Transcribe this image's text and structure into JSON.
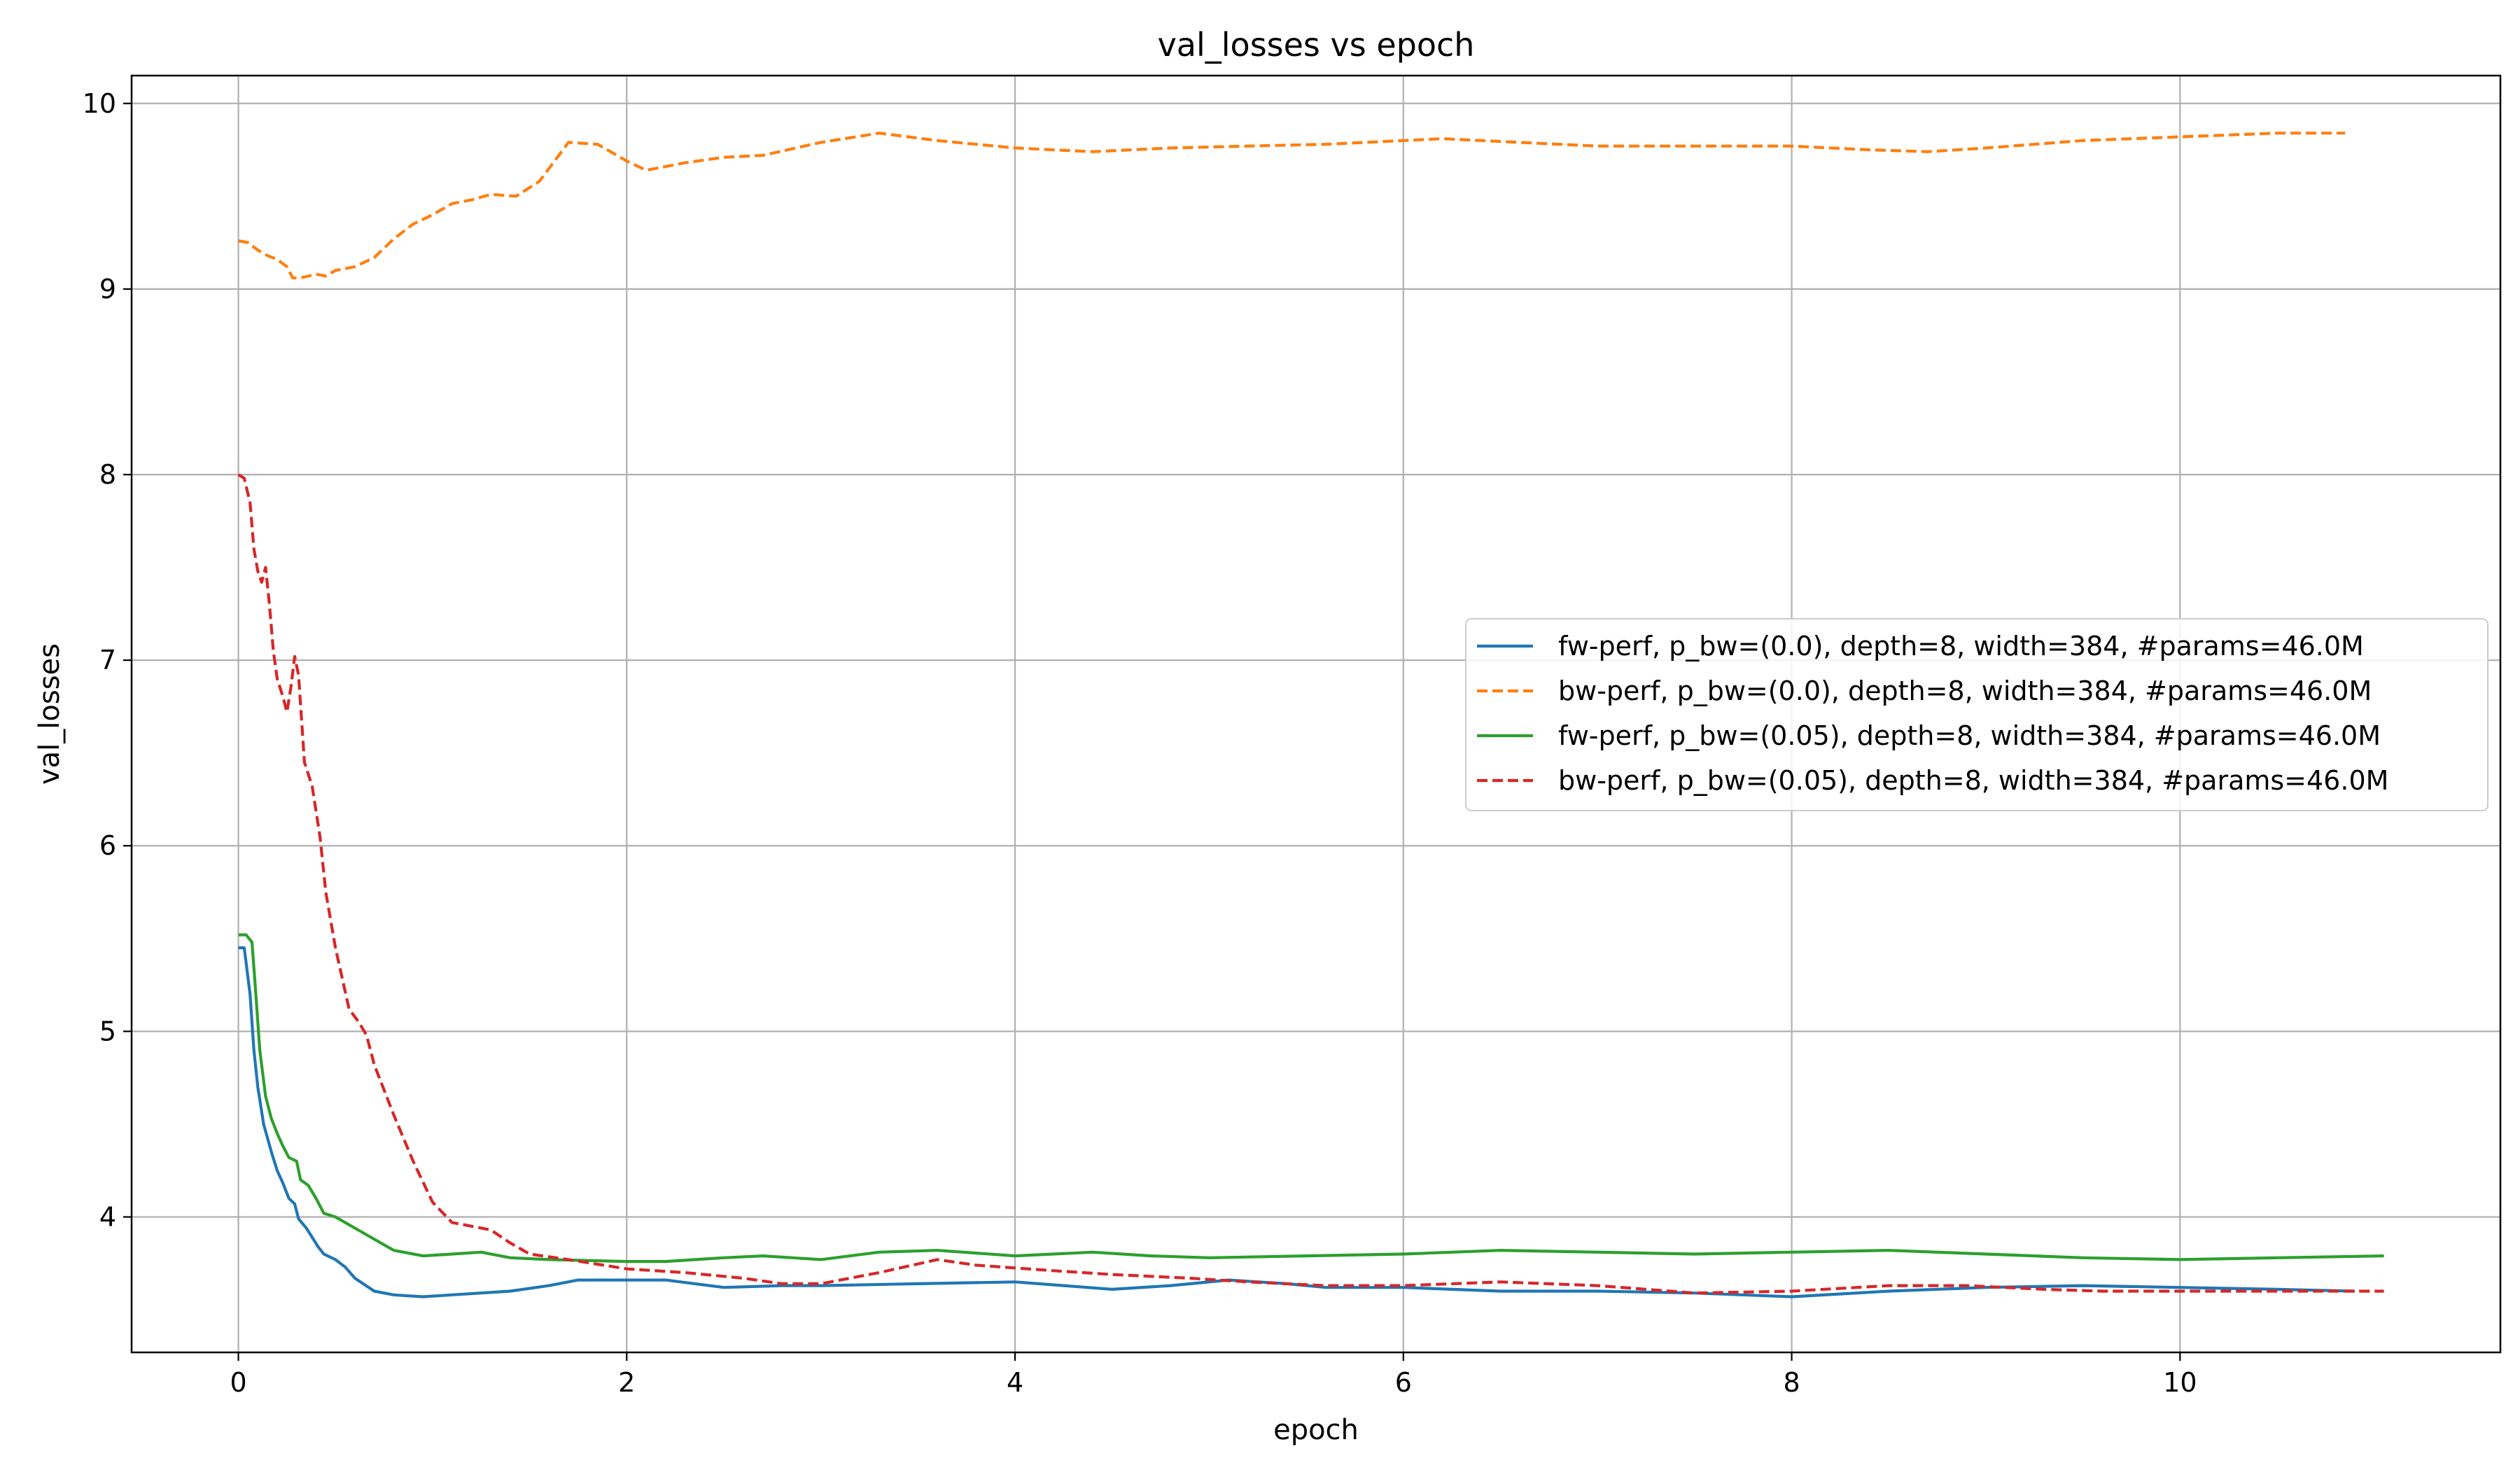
{
  "chart_data": {
    "type": "line",
    "title": "val_losses vs epoch",
    "xlabel": "epoch",
    "ylabel": "val_losses",
    "xlim": [
      -0.55,
      11.65
    ],
    "ylim": [
      3.27,
      10.15
    ],
    "x_ticks": [
      0,
      2,
      4,
      6,
      8,
      10
    ],
    "x_tick_labels": [
      "0",
      "2",
      "4",
      "6",
      "8",
      "10"
    ],
    "y_ticks": [
      4,
      5,
      6,
      7,
      8,
      9,
      10
    ],
    "y_tick_labels": [
      "4",
      "5",
      "6",
      "7",
      "8",
      "9",
      "10"
    ],
    "grid": true,
    "legend_position": "center-right",
    "series": [
      {
        "name": "fw-perf, p_bw=(0.0), depth=8, width=384, #params=46.0M",
        "color": "#1f77b4",
        "style": "solid",
        "points": [
          [
            0,
            5.45
          ],
          [
            0.03,
            5.45
          ],
          [
            0.06,
            5.2
          ],
          [
            0.08,
            4.9
          ],
          [
            0.1,
            4.7
          ],
          [
            0.13,
            4.5
          ],
          [
            0.17,
            4.35
          ],
          [
            0.2,
            4.25
          ],
          [
            0.23,
            4.18
          ],
          [
            0.26,
            4.1
          ],
          [
            0.29,
            4.07
          ],
          [
            0.31,
            3.99
          ],
          [
            0.35,
            3.94
          ],
          [
            0.38,
            3.89
          ],
          [
            0.41,
            3.84
          ],
          [
            0.44,
            3.8
          ],
          [
            0.5,
            3.77
          ],
          [
            0.55,
            3.73
          ],
          [
            0.6,
            3.67
          ],
          [
            0.7,
            3.6
          ],
          [
            0.8,
            3.58
          ],
          [
            0.95,
            3.57
          ],
          [
            1.1,
            3.58
          ],
          [
            1.4,
            3.6
          ],
          [
            1.6,
            3.63
          ],
          [
            1.75,
            3.66
          ],
          [
            2.0,
            3.66
          ],
          [
            2.2,
            3.66
          ],
          [
            2.5,
            3.62
          ],
          [
            2.8,
            3.63
          ],
          [
            3.0,
            3.63
          ],
          [
            3.5,
            3.64
          ],
          [
            4.0,
            3.65
          ],
          [
            4.5,
            3.61
          ],
          [
            4.8,
            3.63
          ],
          [
            5.1,
            3.66
          ],
          [
            5.4,
            3.64
          ],
          [
            5.6,
            3.62
          ],
          [
            6.0,
            3.62
          ],
          [
            6.5,
            3.6
          ],
          [
            7.0,
            3.6
          ],
          [
            7.5,
            3.59
          ],
          [
            8.0,
            3.57
          ],
          [
            8.5,
            3.6
          ],
          [
            9.0,
            3.62
          ],
          [
            9.5,
            3.63
          ],
          [
            10.0,
            3.62
          ],
          [
            10.5,
            3.61
          ],
          [
            10.9,
            3.6
          ]
        ]
      },
      {
        "name": "bw-perf, p_bw=(0.0), depth=8, width=384, #params=46.0M",
        "color": "#ff7f0e",
        "style": "dashed",
        "points": [
          [
            0,
            9.26
          ],
          [
            0.05,
            9.25
          ],
          [
            0.1,
            9.21
          ],
          [
            0.15,
            9.18
          ],
          [
            0.2,
            9.16
          ],
          [
            0.25,
            9.12
          ],
          [
            0.28,
            9.06
          ],
          [
            0.32,
            9.06
          ],
          [
            0.4,
            9.08
          ],
          [
            0.45,
            9.07
          ],
          [
            0.5,
            9.1
          ],
          [
            0.6,
            9.12
          ],
          [
            0.7,
            9.17
          ],
          [
            0.8,
            9.27
          ],
          [
            0.9,
            9.35
          ],
          [
            1.0,
            9.4
          ],
          [
            1.1,
            9.46
          ],
          [
            1.2,
            9.48
          ],
          [
            1.3,
            9.51
          ],
          [
            1.43,
            9.5
          ],
          [
            1.55,
            9.58
          ],
          [
            1.7,
            9.79
          ],
          [
            1.85,
            9.78
          ],
          [
            2.0,
            9.69
          ],
          [
            2.1,
            9.64
          ],
          [
            2.3,
            9.68
          ],
          [
            2.5,
            9.71
          ],
          [
            2.7,
            9.72
          ],
          [
            3.0,
            9.79
          ],
          [
            3.3,
            9.84
          ],
          [
            3.6,
            9.8
          ],
          [
            4.0,
            9.76
          ],
          [
            4.4,
            9.74
          ],
          [
            4.8,
            9.76
          ],
          [
            5.2,
            9.77
          ],
          [
            5.6,
            9.78
          ],
          [
            6.0,
            9.8
          ],
          [
            6.2,
            9.81
          ],
          [
            6.6,
            9.79
          ],
          [
            7.0,
            9.77
          ],
          [
            7.5,
            9.77
          ],
          [
            8.0,
            9.77
          ],
          [
            8.4,
            9.75
          ],
          [
            8.7,
            9.74
          ],
          [
            9.0,
            9.76
          ],
          [
            9.5,
            9.8
          ],
          [
            10.0,
            9.82
          ],
          [
            10.5,
            9.84
          ],
          [
            10.85,
            9.84
          ]
        ]
      },
      {
        "name": "fw-perf, p_bw=(0.05), depth=8, width=384, #params=46.0M",
        "color": "#2ca02c",
        "style": "solid",
        "points": [
          [
            0,
            5.52
          ],
          [
            0.04,
            5.52
          ],
          [
            0.07,
            5.48
          ],
          [
            0.09,
            5.2
          ],
          [
            0.11,
            4.9
          ],
          [
            0.14,
            4.65
          ],
          [
            0.17,
            4.53
          ],
          [
            0.2,
            4.45
          ],
          [
            0.23,
            4.38
          ],
          [
            0.26,
            4.32
          ],
          [
            0.3,
            4.3
          ],
          [
            0.32,
            4.2
          ],
          [
            0.36,
            4.17
          ],
          [
            0.4,
            4.1
          ],
          [
            0.44,
            4.02
          ],
          [
            0.5,
            4.0
          ],
          [
            0.6,
            3.94
          ],
          [
            0.7,
            3.88
          ],
          [
            0.8,
            3.82
          ],
          [
            0.95,
            3.79
          ],
          [
            1.1,
            3.8
          ],
          [
            1.25,
            3.81
          ],
          [
            1.4,
            3.78
          ],
          [
            1.6,
            3.77
          ],
          [
            2.0,
            3.76
          ],
          [
            2.2,
            3.76
          ],
          [
            2.5,
            3.78
          ],
          [
            2.7,
            3.79
          ],
          [
            3.0,
            3.77
          ],
          [
            3.3,
            3.81
          ],
          [
            3.6,
            3.82
          ],
          [
            4.0,
            3.79
          ],
          [
            4.4,
            3.81
          ],
          [
            4.7,
            3.79
          ],
          [
            5.0,
            3.78
          ],
          [
            5.5,
            3.79
          ],
          [
            6.0,
            3.8
          ],
          [
            6.5,
            3.82
          ],
          [
            7.0,
            3.81
          ],
          [
            7.5,
            3.8
          ],
          [
            8.0,
            3.81
          ],
          [
            8.5,
            3.82
          ],
          [
            9.0,
            3.8
          ],
          [
            9.5,
            3.78
          ],
          [
            10.0,
            3.77
          ],
          [
            10.5,
            3.78
          ],
          [
            11.05,
            3.79
          ]
        ]
      },
      {
        "name": "bw-perf, p_bw=(0.05), depth=8, width=384, #params=46.0M",
        "color": "#d62728",
        "style": "dashed",
        "points": [
          [
            0,
            8.0
          ],
          [
            0.03,
            7.98
          ],
          [
            0.06,
            7.85
          ],
          [
            0.08,
            7.6
          ],
          [
            0.1,
            7.48
          ],
          [
            0.12,
            7.42
          ],
          [
            0.14,
            7.5
          ],
          [
            0.16,
            7.3
          ],
          [
            0.18,
            7.05
          ],
          [
            0.2,
            6.9
          ],
          [
            0.23,
            6.8
          ],
          [
            0.25,
            6.72
          ],
          [
            0.27,
            6.85
          ],
          [
            0.29,
            7.02
          ],
          [
            0.31,
            6.92
          ],
          [
            0.34,
            6.45
          ],
          [
            0.38,
            6.32
          ],
          [
            0.42,
            6.05
          ],
          [
            0.45,
            5.75
          ],
          [
            0.5,
            5.45
          ],
          [
            0.57,
            5.12
          ],
          [
            0.62,
            5.05
          ],
          [
            0.66,
            4.98
          ],
          [
            0.7,
            4.82
          ],
          [
            0.8,
            4.55
          ],
          [
            0.9,
            4.3
          ],
          [
            1.0,
            4.08
          ],
          [
            1.1,
            3.97
          ],
          [
            1.2,
            3.95
          ],
          [
            1.3,
            3.93
          ],
          [
            1.4,
            3.86
          ],
          [
            1.5,
            3.8
          ],
          [
            1.7,
            3.77
          ],
          [
            2.0,
            3.72
          ],
          [
            2.3,
            3.7
          ],
          [
            2.6,
            3.67
          ],
          [
            2.8,
            3.64
          ],
          [
            3.0,
            3.64
          ],
          [
            3.3,
            3.7
          ],
          [
            3.6,
            3.77
          ],
          [
            3.8,
            3.74
          ],
          [
            4.2,
            3.71
          ],
          [
            4.5,
            3.69
          ],
          [
            4.9,
            3.67
          ],
          [
            5.2,
            3.65
          ],
          [
            5.6,
            3.63
          ],
          [
            6.0,
            3.63
          ],
          [
            6.5,
            3.65
          ],
          [
            7.0,
            3.63
          ],
          [
            7.5,
            3.59
          ],
          [
            8.0,
            3.6
          ],
          [
            8.5,
            3.63
          ],
          [
            8.9,
            3.63
          ],
          [
            9.3,
            3.61
          ],
          [
            9.6,
            3.6
          ],
          [
            10.0,
            3.6
          ],
          [
            10.5,
            3.6
          ],
          [
            11.05,
            3.6
          ]
        ]
      }
    ]
  }
}
